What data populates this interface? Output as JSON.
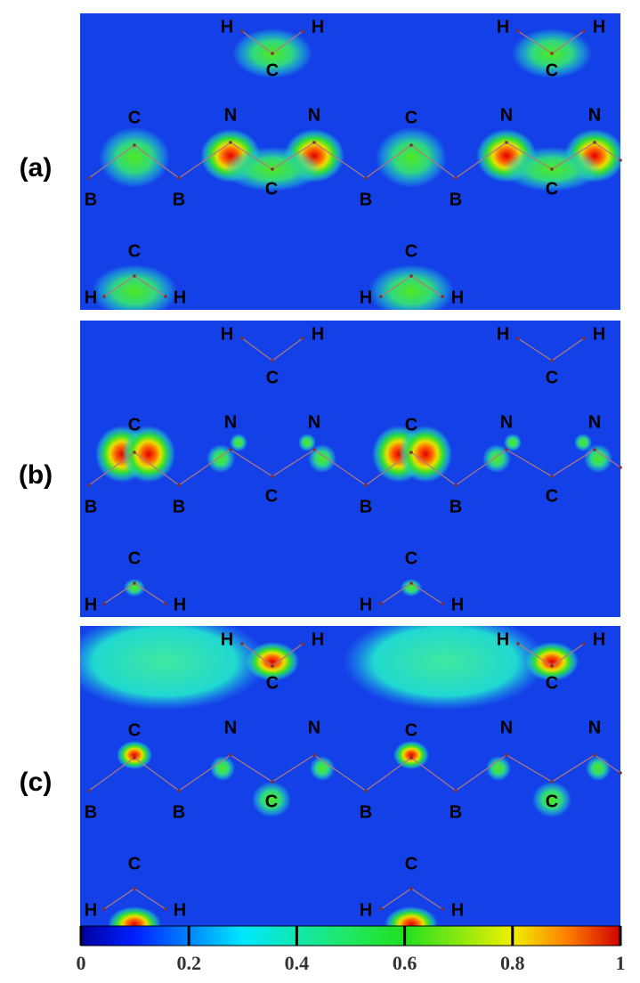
{
  "panels": [
    {
      "label": "(a)",
      "atoms": [
        "H",
        "H",
        "C",
        "H",
        "H",
        "C",
        "C",
        "N",
        "N",
        "C",
        "N",
        "N",
        "B",
        "B",
        "C",
        "B",
        "B",
        "C",
        "C",
        "H",
        "H",
        "C",
        "H",
        "H"
      ]
    },
    {
      "label": "(b)",
      "atoms": [
        "H",
        "H",
        "C",
        "H",
        "H",
        "C",
        "C",
        "N",
        "N",
        "C",
        "N",
        "N",
        "B",
        "B",
        "C",
        "B",
        "B",
        "C",
        "C",
        "H",
        "H",
        "C",
        "H",
        "H"
      ]
    },
    {
      "label": "(c)",
      "atoms": [
        "H",
        "H",
        "C",
        "H",
        "H",
        "C",
        "C",
        "N",
        "N",
        "C",
        "N",
        "N",
        "B",
        "B",
        "C",
        "B",
        "B",
        "C",
        "C",
        "H",
        "H",
        "C",
        "H",
        "H"
      ]
    }
  ],
  "colorbar": {
    "lim": [
      0,
      1
    ],
    "ticks": [
      0,
      0.2,
      0.4,
      0.6,
      0.8,
      1
    ]
  }
}
